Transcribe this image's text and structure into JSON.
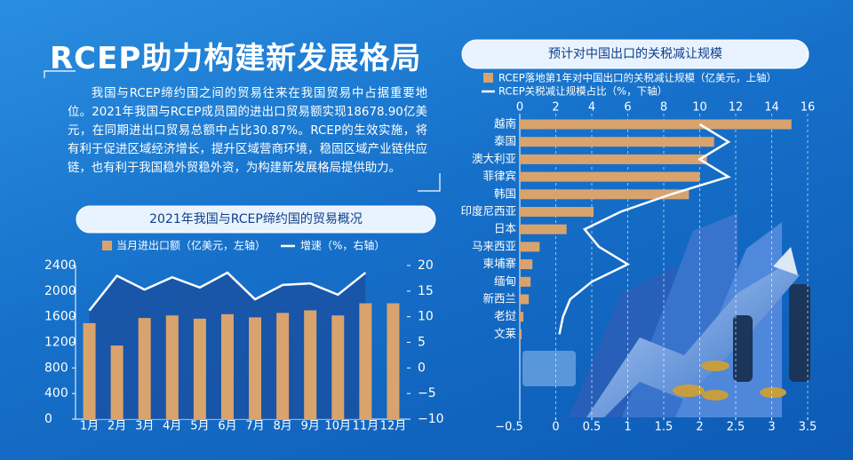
{
  "header": {
    "title": "RCEP助力构建新发展格局",
    "paragraph": "我国与RCEP缔约国之间的贸易往来在我国贸易中占据重要地位。2021年我国与RCEP成员国的进出口贸易额实现18678.90亿美元，在同期进出口贸易总额中占比30.87%。RCEP的生效实施，将有利于促进区域经济增长，提升区域营商环境，稳固区域产业链供应链，也有利于我国稳外贸稳外资，为构建新发展格局提供助力。"
  },
  "chart_data": [
    {
      "type": "bar",
      "title": "2021年我国与RCEP缔约国的贸易概况",
      "categories": [
        "1月",
        "2月",
        "3月",
        "4月",
        "5月",
        "6月",
        "7月",
        "8月",
        "9月",
        "10月",
        "11月",
        "12月"
      ],
      "series": [
        {
          "name": "当月进出口额（亿美元，左轴）",
          "color": "#d9a36e",
          "values": [
            1500,
            1150,
            1580,
            1620,
            1570,
            1640,
            1590,
            1660,
            1700,
            1620,
            1810,
            1810
          ]
        },
        {
          "name": "增速（%，右轴）",
          "color": "#ffffff",
          "axis": "y2",
          "values": [
            11.2,
            18,
            15.3,
            17.7,
            15.7,
            18.6,
            13.4,
            16.2,
            16.5,
            14.3,
            18.6,
            null
          ]
        }
      ],
      "ylim": [
        0,
        2400
      ],
      "yticks": [
        0,
        400,
        800,
        1200,
        1600,
        2000,
        2400
      ],
      "y2lim": [
        -10,
        20
      ],
      "y2ticks": [
        {
          "value": -10,
          "label": "−10"
        },
        {
          "value": -5,
          "label": "−5"
        },
        0,
        5,
        10,
        15,
        20
      ]
    },
    {
      "type": "barh",
      "title": "预计对中国出口的关税减让规模",
      "categories": [
        "越南",
        "泰国",
        "澳大利亚",
        "菲律宾",
        "韩国",
        "印度尼西亚",
        "日本",
        "马来西亚",
        "柬埔寨",
        "缅甸",
        "新西兰",
        "老挝",
        "文莱"
      ],
      "series": [
        {
          "name": "RCEP落地第1年对中国出口的关税减让规模（亿美元，上轴）",
          "color": "#d9a36e",
          "values": [
            15.1,
            10.8,
            10.4,
            10.0,
            9.4,
            4.1,
            2.6,
            1.1,
            0.7,
            0.6,
            0.5,
            0.2,
            0.1
          ]
        },
        {
          "name": "RCEP关税减让规模占比（%，下轴）",
          "color": "#ffffff",
          "axis": "x2",
          "values": [
            2.0,
            2.4,
            2.0,
            2.4,
            1.6,
            0.9,
            0.4,
            0.6,
            1.0,
            0.5,
            0.2,
            0.1,
            0.05
          ]
        }
      ],
      "xlim": [
        0,
        16
      ],
      "xticks": [
        0,
        2,
        4,
        6,
        8,
        10,
        12,
        14,
        16
      ],
      "x2lim": [
        -0.5,
        3.5
      ],
      "x2ticks": [
        {
          "value": -0.5,
          "label": "−0.5"
        },
        0,
        0.5,
        1,
        1.5,
        2,
        2.5,
        3,
        3.5
      ],
      "grid": true
    }
  ]
}
